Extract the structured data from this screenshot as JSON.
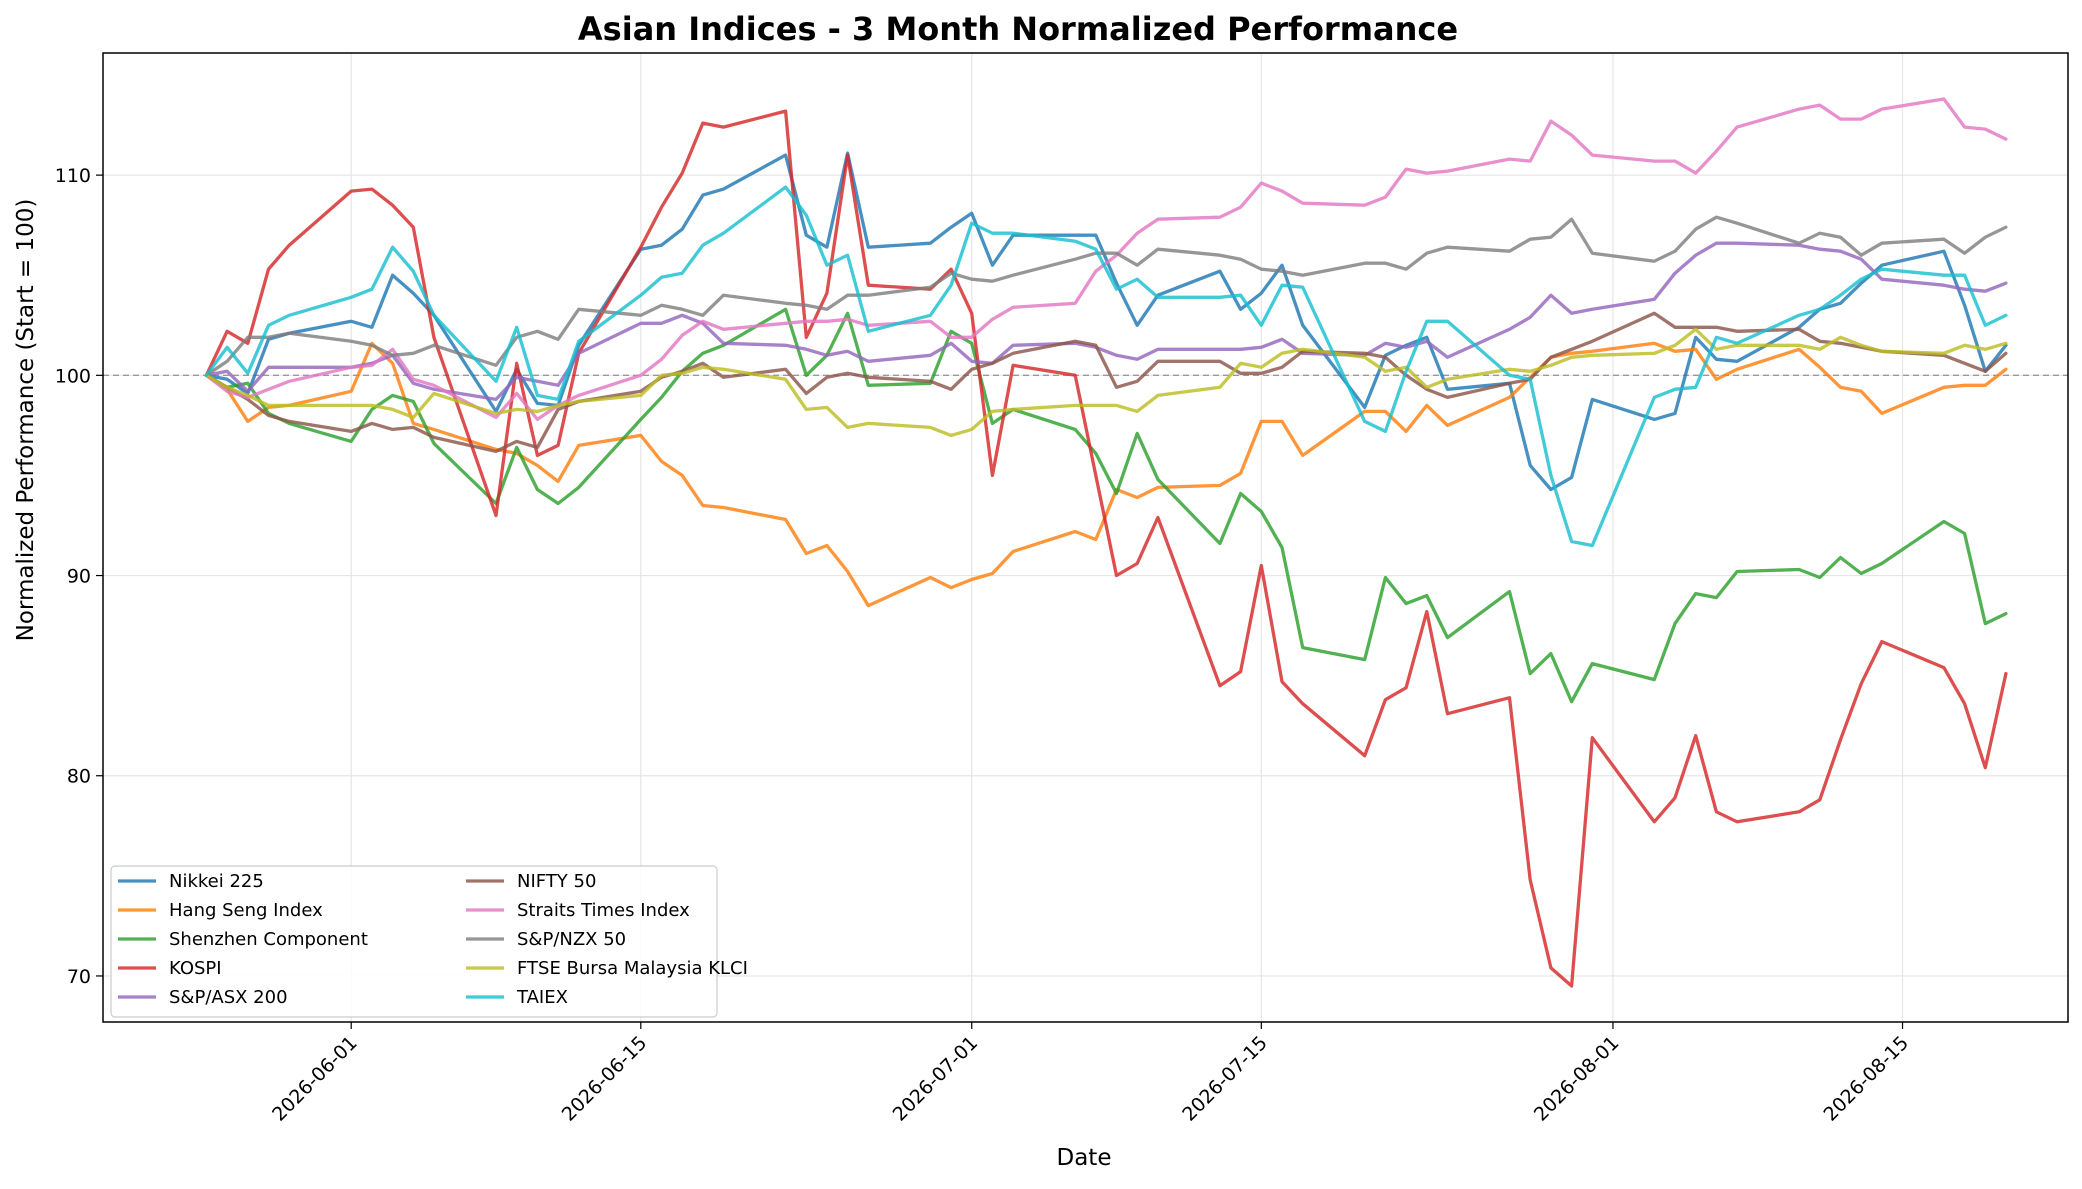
{
  "chart_data": {
    "type": "line",
    "title": "Asian Indices - 3 Month Normalized Performance",
    "xlabel": "Date",
    "ylabel": "Normalized Performance (Start = 100)",
    "x_axis": {
      "type": "date",
      "range": [
        "2026-05-20",
        "2026-08-23"
      ],
      "ticks": [
        "2026-06-01",
        "2026-06-15",
        "2026-07-01",
        "2026-07-15",
        "2026-08-01",
        "2026-08-15"
      ]
    },
    "y_axis": {
      "range": [
        67.7,
        116.1
      ],
      "ticks": [
        70,
        80,
        90,
        100,
        110
      ]
    },
    "grid": true,
    "legend": {
      "placement": "lower-left",
      "columns": 2
    },
    "reference_line": {
      "y": 100,
      "style": "dashed"
    },
    "x": [
      "2026-05-25",
      "2026-05-26",
      "2026-05-27",
      "2026-05-28",
      "2026-05-29",
      "2026-06-01",
      "2026-06-02",
      "2026-06-03",
      "2026-06-04",
      "2026-06-05",
      "2026-06-08",
      "2026-06-09",
      "2026-06-10",
      "2026-06-11",
      "2026-06-12",
      "2026-06-15",
      "2026-06-16",
      "2026-06-17",
      "2026-06-18",
      "2026-06-19",
      "2026-06-22",
      "2026-06-23",
      "2026-06-24",
      "2026-06-25",
      "2026-06-26",
      "2026-06-29",
      "2026-06-30",
      "2026-07-01",
      "2026-07-02",
      "2026-07-03",
      "2026-07-06",
      "2026-07-07",
      "2026-07-08",
      "2026-07-09",
      "2026-07-10",
      "2026-07-13",
      "2026-07-14",
      "2026-07-15",
      "2026-07-16",
      "2026-07-17",
      "2026-07-20",
      "2026-07-21",
      "2026-07-22",
      "2026-07-23",
      "2026-07-24",
      "2026-07-27",
      "2026-07-28",
      "2026-07-29",
      "2026-07-30",
      "2026-07-31",
      "2026-08-03",
      "2026-08-04",
      "2026-08-05",
      "2026-08-06",
      "2026-08-07",
      "2026-08-10",
      "2026-08-11",
      "2026-08-12",
      "2026-08-13",
      "2026-08-14",
      "2026-08-17",
      "2026-08-18",
      "2026-08-19",
      "2026-08-20"
    ],
    "series": [
      {
        "name": "Nikkei 225",
        "color": "#1f77b4",
        "values": [
          100.0,
          99.8,
          99.1,
          101.8,
          102.1,
          102.7,
          102.4,
          105.0,
          104.1,
          103.0,
          98.2,
          100.3,
          98.6,
          98.5,
          101.5,
          106.3,
          106.5,
          107.3,
          109.0,
          109.3,
          111.0,
          107.0,
          106.4,
          111.1,
          106.4,
          106.6,
          107.4,
          108.1,
          105.5,
          107.0,
          107.0,
          107.0,
          104.6,
          102.5,
          104.0,
          105.2,
          103.3,
          104.1,
          105.5,
          102.5,
          98.4,
          101.0,
          101.5,
          101.9,
          99.3,
          99.6,
          95.5,
          94.3,
          94.9,
          98.8,
          97.8,
          98.1,
          101.9,
          100.8,
          100.7,
          102.4,
          103.3,
          103.6,
          104.6,
          105.5,
          106.2,
          103.5,
          100.2,
          101.5
        ]
      },
      {
        "name": "Hang Seng Index",
        "color": "#ff7f0e",
        "values": [
          100.0,
          99.3,
          97.7,
          98.4,
          98.5,
          99.2,
          101.6,
          100.6,
          97.6,
          97.3,
          96.3,
          96.1,
          95.5,
          94.7,
          96.5,
          97.0,
          95.7,
          95.0,
          93.5,
          93.4,
          92.8,
          91.1,
          91.5,
          90.2,
          88.5,
          89.9,
          89.4,
          89.8,
          90.1,
          91.2,
          92.2,
          91.8,
          94.3,
          93.9,
          94.4,
          94.5,
          95.1,
          97.7,
          97.7,
          96.0,
          98.2,
          98.2,
          97.2,
          98.5,
          97.5,
          98.9,
          99.9,
          100.9,
          101.1,
          101.2,
          101.6,
          101.2,
          101.3,
          99.8,
          100.3,
          101.3,
          100.4,
          99.4,
          99.2,
          98.1,
          99.4,
          99.5,
          99.5,
          100.3
        ]
      },
      {
        "name": "Shenzhen Component",
        "color": "#2ca02c",
        "values": [
          100.0,
          99.4,
          99.6,
          98.1,
          97.6,
          96.7,
          98.3,
          99.0,
          98.7,
          96.6,
          93.6,
          96.4,
          94.3,
          93.6,
          94.4,
          97.8,
          98.9,
          100.2,
          101.1,
          101.5,
          103.3,
          100.0,
          101.0,
          103.1,
          99.5,
          99.6,
          102.2,
          101.6,
          97.6,
          98.3,
          97.3,
          96.1,
          94.1,
          97.1,
          94.8,
          91.6,
          94.1,
          93.2,
          91.4,
          86.4,
          85.8,
          89.9,
          88.6,
          89.0,
          86.9,
          89.2,
          85.1,
          86.1,
          83.7,
          85.6,
          84.8,
          87.6,
          89.1,
          88.9,
          90.2,
          90.3,
          89.9,
          90.9,
          90.1,
          90.6,
          92.7,
          92.1,
          87.6,
          88.1
        ]
      },
      {
        "name": "KOSPI",
        "color": "#d62728",
        "values": [
          100.0,
          102.2,
          101.6,
          105.3,
          106.5,
          109.2,
          109.3,
          108.5,
          107.4,
          101.9,
          93.0,
          100.6,
          96.0,
          96.5,
          101.1,
          106.4,
          108.4,
          110.1,
          112.6,
          112.4,
          113.2,
          101.9,
          104.1,
          111.0,
          104.5,
          104.3,
          105.3,
          103.1,
          95.0,
          100.5,
          100.0,
          95.0,
          90.0,
          90.6,
          92.9,
          84.5,
          85.2,
          90.5,
          84.7,
          83.6,
          81.0,
          83.8,
          84.4,
          88.2,
          83.1,
          83.9,
          74.8,
          70.4,
          69.5,
          81.9,
          77.7,
          78.9,
          82.0,
          78.2,
          77.7,
          78.2,
          78.8,
          81.8,
          84.6,
          86.7,
          85.4,
          83.6,
          80.4,
          85.1
        ]
      },
      {
        "name": "S&P/ASX 200",
        "color": "#9467bd",
        "values": [
          100.0,
          100.2,
          99.2,
          100.4,
          100.4,
          100.4,
          100.6,
          101.0,
          99.6,
          99.3,
          98.8,
          99.9,
          99.7,
          99.5,
          101.1,
          102.6,
          102.6,
          103.0,
          102.6,
          101.6,
          101.5,
          101.3,
          101.0,
          101.2,
          100.7,
          101.0,
          101.6,
          100.7,
          100.6,
          101.5,
          101.6,
          101.4,
          101.0,
          100.8,
          101.3,
          101.3,
          101.3,
          101.4,
          101.8,
          101.1,
          101.0,
          101.6,
          101.4,
          101.7,
          100.9,
          102.3,
          102.9,
          104.0,
          103.1,
          103.3,
          103.8,
          105.1,
          106.0,
          106.6,
          106.6,
          106.5,
          106.3,
          106.2,
          105.8,
          104.8,
          104.5,
          104.3,
          104.2,
          104.6
        ]
      },
      {
        "name": "NIFTY 50",
        "color": "#8c564b",
        "values": [
          100.0,
          99.4,
          98.8,
          98.0,
          97.7,
          97.2,
          97.6,
          97.3,
          97.4,
          96.9,
          96.2,
          96.7,
          96.4,
          98.3,
          98.7,
          99.2,
          99.9,
          100.2,
          100.6,
          99.9,
          100.3,
          99.1,
          99.9,
          100.1,
          99.9,
          99.7,
          99.3,
          100.3,
          100.6,
          101.1,
          101.7,
          101.5,
          99.4,
          99.7,
          100.7,
          100.7,
          100.1,
          100.1,
          100.4,
          101.2,
          101.1,
          100.9,
          100.0,
          99.3,
          98.9,
          99.6,
          99.8,
          100.9,
          101.3,
          101.7,
          103.1,
          102.4,
          102.4,
          102.4,
          102.2,
          102.3,
          101.7,
          101.6,
          101.4,
          101.2,
          101.0,
          100.6,
          100.2,
          101.1
        ]
      },
      {
        "name": "Straits Times Index",
        "color": "#e377c2",
        "values": [
          100.0,
          99.2,
          98.9,
          99.3,
          99.7,
          100.4,
          100.5,
          101.3,
          99.8,
          99.5,
          97.9,
          99.1,
          97.8,
          98.5,
          99.0,
          100.0,
          100.8,
          102.0,
          102.7,
          102.3,
          102.6,
          102.7,
          102.7,
          102.8,
          102.5,
          102.7,
          101.9,
          101.9,
          102.8,
          103.4,
          103.6,
          105.2,
          106.0,
          107.1,
          107.8,
          107.9,
          108.4,
          109.6,
          109.2,
          108.6,
          108.5,
          108.9,
          110.3,
          110.1,
          110.2,
          110.8,
          110.7,
          112.7,
          112.0,
          111.0,
          110.7,
          110.7,
          110.1,
          111.2,
          112.4,
          113.3,
          113.5,
          112.8,
          112.8,
          113.3,
          113.8,
          112.4,
          112.3,
          111.8
        ]
      },
      {
        "name": "S&P/NZX 50",
        "color": "#7f7f7f",
        "values": [
          100.0,
          100.7,
          101.9,
          101.9,
          102.1,
          101.7,
          101.5,
          101.0,
          101.1,
          101.5,
          100.5,
          101.9,
          102.2,
          101.8,
          103.3,
          103.0,
          103.5,
          103.3,
          103.0,
          104.0,
          103.6,
          103.5,
          103.3,
          104.0,
          104.0,
          104.4,
          105.1,
          104.8,
          104.7,
          105.0,
          105.8,
          106.1,
          106.1,
          105.5,
          106.3,
          106.0,
          105.8,
          105.3,
          105.2,
          105.0,
          105.6,
          105.6,
          105.3,
          106.1,
          106.4,
          106.2,
          106.8,
          106.9,
          107.8,
          106.1,
          105.7,
          106.2,
          107.3,
          107.9,
          107.6,
          106.6,
          107.1,
          106.9,
          106.0,
          106.6,
          106.8,
          106.1,
          106.9,
          107.4
        ]
      },
      {
        "name": "FTSE Bursa Malaysia KLCI",
        "color": "#bcbd22",
        "values": [
          100.0,
          99.4,
          99.0,
          98.5,
          98.5,
          98.5,
          98.5,
          98.3,
          97.9,
          99.1,
          98.1,
          98.3,
          98.2,
          98.5,
          98.7,
          99.0,
          100.0,
          100.1,
          100.4,
          100.3,
          99.8,
          98.3,
          98.4,
          97.4,
          97.6,
          97.4,
          97.0,
          97.3,
          98.2,
          98.3,
          98.5,
          98.5,
          98.5,
          98.2,
          99.0,
          99.4,
          100.6,
          100.4,
          101.1,
          101.3,
          100.9,
          100.2,
          100.4,
          99.4,
          99.8,
          100.3,
          100.2,
          100.5,
          100.9,
          101.0,
          101.1,
          101.5,
          102.3,
          101.3,
          101.5,
          101.5,
          101.3,
          101.9,
          101.5,
          101.2,
          101.1,
          101.5,
          101.3,
          101.6
        ]
      },
      {
        "name": "TAIEX",
        "color": "#17becf",
        "values": [
          100.0,
          101.4,
          100.1,
          102.5,
          103.0,
          103.9,
          104.3,
          106.4,
          105.2,
          103.0,
          99.7,
          102.4,
          99.0,
          98.8,
          101.7,
          104.0,
          104.9,
          105.1,
          106.5,
          107.1,
          109.4,
          108.0,
          105.5,
          106.0,
          102.2,
          103.0,
          104.5,
          107.6,
          107.1,
          107.1,
          106.7,
          106.3,
          104.3,
          104.8,
          103.9,
          103.9,
          104.0,
          102.5,
          104.5,
          104.4,
          97.7,
          97.2,
          100.2,
          102.7,
          102.7,
          100.0,
          99.8,
          95.0,
          91.7,
          91.5,
          98.9,
          99.3,
          99.4,
          101.9,
          101.6,
          103.0,
          103.3,
          104.0,
          104.8,
          105.3,
          105.0,
          105.0,
          102.5,
          103.0
        ]
      }
    ]
  }
}
